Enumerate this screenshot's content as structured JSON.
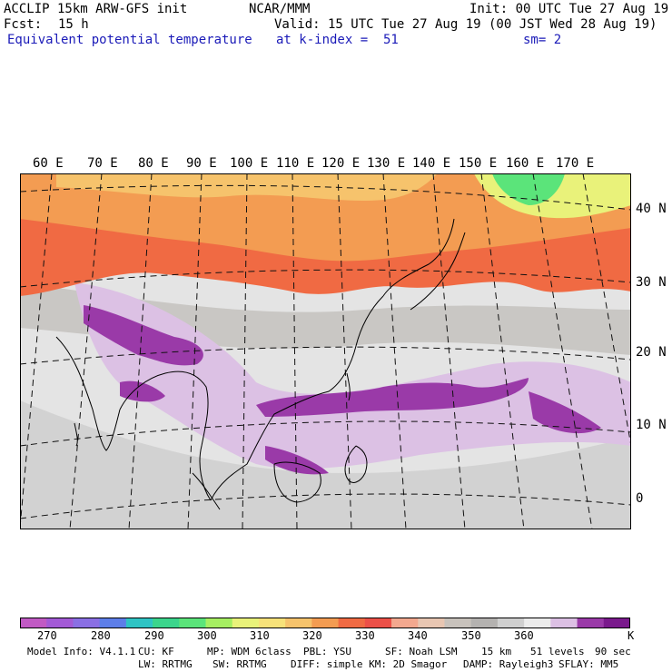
{
  "header": {
    "model_line": "ACCLIP 15km ARW-GFS init",
    "center": "NCAR/MMM",
    "init": "Init: 00 UTC Tue 27 Aug 19",
    "fcst_label": "Fcst:",
    "fcst_value": "15 h",
    "valid": "Valid: 15 UTC Tue 27 Aug 19 (00 JST Wed 28 Aug 19)",
    "field": "Equivalent potential temperature",
    "level": "at k-index =  51",
    "smoothing": "sm= 2"
  },
  "map": {
    "lon_labels": [
      "60 E",
      "70 E",
      "80 E",
      "90 E",
      "100 E",
      "110 E",
      "120 E",
      "130 E",
      "140 E",
      "150 E",
      "160 E",
      "170 E"
    ],
    "lat_labels": [
      "40 N",
      "30 N",
      "20 N",
      "10 N",
      "0"
    ]
  },
  "colorbar": {
    "colors": [
      "#c15ac4",
      "#a35ad6",
      "#8a6fe4",
      "#5d7ee8",
      "#2fc4c4",
      "#3bd58c",
      "#5be47a",
      "#a6ef62",
      "#e9f27a",
      "#f7e27a",
      "#f6c36c",
      "#f39c52",
      "#f06a43",
      "#ec5048",
      "#f3a88f",
      "#e8c6b2",
      "#c8c2bc",
      "#b4b2b0",
      "#d0d0d0",
      "#ececec",
      "#dcc0e4",
      "#9a3aa8",
      "#7a1a8c"
    ],
    "ticks": [
      "270",
      "280",
      "290",
      "300",
      "310",
      "320",
      "330",
      "340",
      "350",
      "360"
    ],
    "unit": "K"
  },
  "footer": {
    "line1": [
      "Model Info: V4.1.1",
      "CU: KF",
      "MP: WDM 6class",
      "PBL: YSU",
      "SF: Noah LSM",
      "15 km",
      "51 levels",
      "90 sec"
    ],
    "line2": [
      "LW: RRTMG",
      "SW: RRTMG",
      "DIFF: simple KM: 2D Smagor",
      "DAMP: Rayleigh3",
      "SFLAY: MM5"
    ]
  }
}
